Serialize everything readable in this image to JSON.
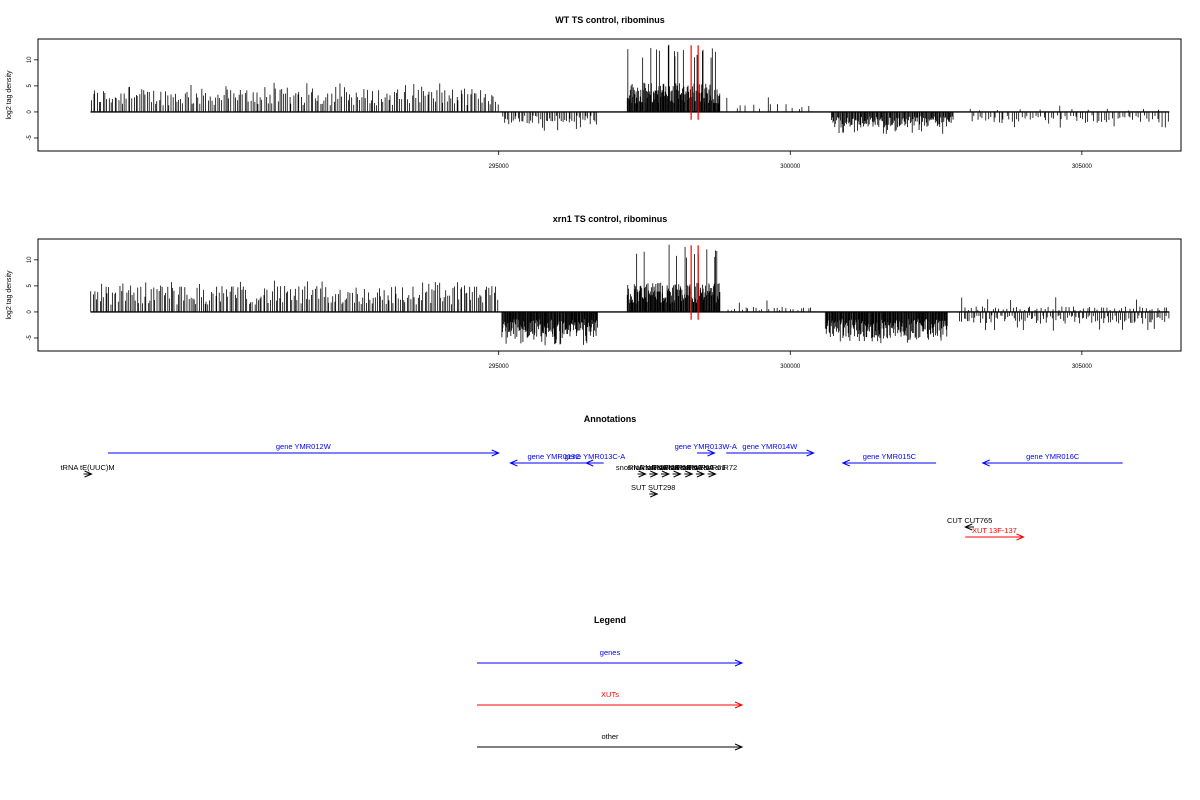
{
  "chart_data": [
    {
      "type": "bar",
      "title": "WT TS control, ribominus",
      "ylabel": "log2 tag density",
      "xlim": [
        287100,
        306700
      ],
      "ylim": [
        -7.5,
        14
      ],
      "xticks": [
        295000,
        300000,
        305000
      ],
      "yticks": [
        -5,
        0,
        5,
        10
      ],
      "marker_color": "#ff0000",
      "red_markers_x": [
        298300,
        298420
      ],
      "regions": [
        {
          "x_start": 288000,
          "x_end": 295000,
          "strand": "plus",
          "level": 3.6,
          "peak": 5.6,
          "count": 210
        },
        {
          "x_start": 295050,
          "x_end": 296700,
          "strand": "minus",
          "level": 2.0,
          "peak": 3.6,
          "count": 55
        },
        {
          "x_start": 297200,
          "x_end": 298800,
          "strand": "plus",
          "level": 4.5,
          "peak": 12.9,
          "count": 150
        },
        {
          "x_start": 298900,
          "x_end": 300400,
          "strand": "plus",
          "level": 1.2,
          "peak": 2.8,
          "count": 14
        },
        {
          "x_start": 300700,
          "x_end": 302800,
          "strand": "minus",
          "level": 2.4,
          "peak": 4.2,
          "count": 150
        },
        {
          "x_start": 302900,
          "x_end": 306500,
          "strand": "plus",
          "level": 0.5,
          "peak": 1.2,
          "count": 12
        },
        {
          "x_start": 303100,
          "x_end": 306500,
          "strand": "minus",
          "level": 1.8,
          "peak": 3.0,
          "count": 75
        }
      ]
    },
    {
      "type": "bar",
      "title": "xrn1 TS control, ribominus",
      "ylabel": "log2 tag density",
      "xlim": [
        287100,
        306700
      ],
      "ylim": [
        -7.5,
        14
      ],
      "xticks": [
        295000,
        300000,
        305000
      ],
      "yticks": [
        -5,
        0,
        5,
        10
      ],
      "marker_color": "#ff0000",
      "red_markers_x": [
        298300,
        298420
      ],
      "regions": [
        {
          "x_start": 288000,
          "x_end": 295000,
          "strand": "plus",
          "level": 4.0,
          "peak": 6.0,
          "count": 230
        },
        {
          "x_start": 295050,
          "x_end": 296700,
          "strand": "minus",
          "level": 4.0,
          "peak": 6.4,
          "count": 160
        },
        {
          "x_start": 297200,
          "x_end": 298800,
          "strand": "plus",
          "level": 4.5,
          "peak": 12.9,
          "count": 150
        },
        {
          "x_start": 298900,
          "x_end": 300400,
          "strand": "plus",
          "level": 0.8,
          "peak": 2.2,
          "count": 25
        },
        {
          "x_start": 300600,
          "x_end": 302700,
          "strand": "minus",
          "level": 4.0,
          "peak": 6.0,
          "count": 200
        },
        {
          "x_start": 302900,
          "x_end": 306500,
          "strand": "plus",
          "level": 0.9,
          "peak": 2.8,
          "count": 60
        },
        {
          "x_start": 302900,
          "x_end": 306500,
          "strand": "minus",
          "level": 1.8,
          "peak": 3.6,
          "count": 110
        }
      ]
    }
  ],
  "annotations": {
    "title": "Annotations",
    "features": [
      {
        "label": "gene YMR012W",
        "x_start": 288300,
        "x_end": 295000,
        "row": 0,
        "strand": "plus",
        "kind": "gene"
      },
      {
        "label": "gene YMR013C",
        "x_start": 295200,
        "x_end": 296700,
        "row": 1,
        "strand": "minus",
        "kind": "gene"
      },
      {
        "label": "gene YMR013C-A",
        "x_start": 296500,
        "x_end": 296800,
        "row": 1,
        "strand": "minus",
        "kind": "gene"
      },
      {
        "label": "gene YMR013W-A",
        "x_start": 298400,
        "x_end": 298700,
        "row": 0,
        "strand": "plus",
        "kind": "gene"
      },
      {
        "label": "gene YMR014W",
        "x_start": 298900,
        "x_end": 300400,
        "row": 0,
        "strand": "plus",
        "kind": "gene"
      },
      {
        "label": "gene YMR015C",
        "x_start": 300900,
        "x_end": 302500,
        "row": 1,
        "strand": "minus",
        "kind": "gene"
      },
      {
        "label": "gene YMR016C",
        "x_start": 303300,
        "x_end": 305700,
        "row": 1,
        "strand": "minus",
        "kind": "gene"
      },
      {
        "label": "tRNA tE(UUC)M",
        "x_start": 287900,
        "x_end": 288000,
        "row": 2,
        "strand": "plus",
        "kind": "other"
      },
      {
        "label": "snoRNA snR77",
        "x_start": 297400,
        "x_end": 297500,
        "row": 2,
        "strand": "plus",
        "kind": "other"
      },
      {
        "label": "snoRNA snR78",
        "x_start": 297600,
        "x_end": 297700,
        "row": 2,
        "strand": "plus",
        "kind": "other"
      },
      {
        "label": "snoRNA snR58",
        "x_start": 297800,
        "x_end": 297900,
        "row": 2,
        "strand": "plus",
        "kind": "other"
      },
      {
        "label": "snoRNA snR59",
        "x_start": 298000,
        "x_end": 298100,
        "row": 2,
        "strand": "plus",
        "kind": "other"
      },
      {
        "label": "snoRNA snR60",
        "x_start": 298200,
        "x_end": 298300,
        "row": 2,
        "strand": "plus",
        "kind": "other"
      },
      {
        "label": "snoRNA snR61",
        "x_start": 298400,
        "x_end": 298500,
        "row": 2,
        "strand": "plus",
        "kind": "other"
      },
      {
        "label": "snoRNA snR72",
        "x_start": 298600,
        "x_end": 298700,
        "row": 2,
        "strand": "plus",
        "kind": "other"
      },
      {
        "label": "SUT SUT298",
        "x_start": 297600,
        "x_end": 297700,
        "row": 3,
        "strand": "plus",
        "kind": "other"
      },
      {
        "label": "CUT CUT765",
        "x_start": 303000,
        "x_end": 303150,
        "row": 4,
        "strand": "minus",
        "kind": "other"
      },
      {
        "label": "XUT 13F-137",
        "x_start": 303000,
        "x_end": 304000,
        "row": 5,
        "strand": "plus",
        "kind": "xut"
      }
    ]
  },
  "legend": {
    "title": "Legend",
    "items": [
      {
        "label": "genes",
        "kind": "gene"
      },
      {
        "label": "XUTs",
        "kind": "xut"
      },
      {
        "label": "other",
        "kind": "other"
      }
    ]
  },
  "colors": {
    "gene": "#0000ff",
    "xut": "#ff0000",
    "other": "#000000"
  }
}
